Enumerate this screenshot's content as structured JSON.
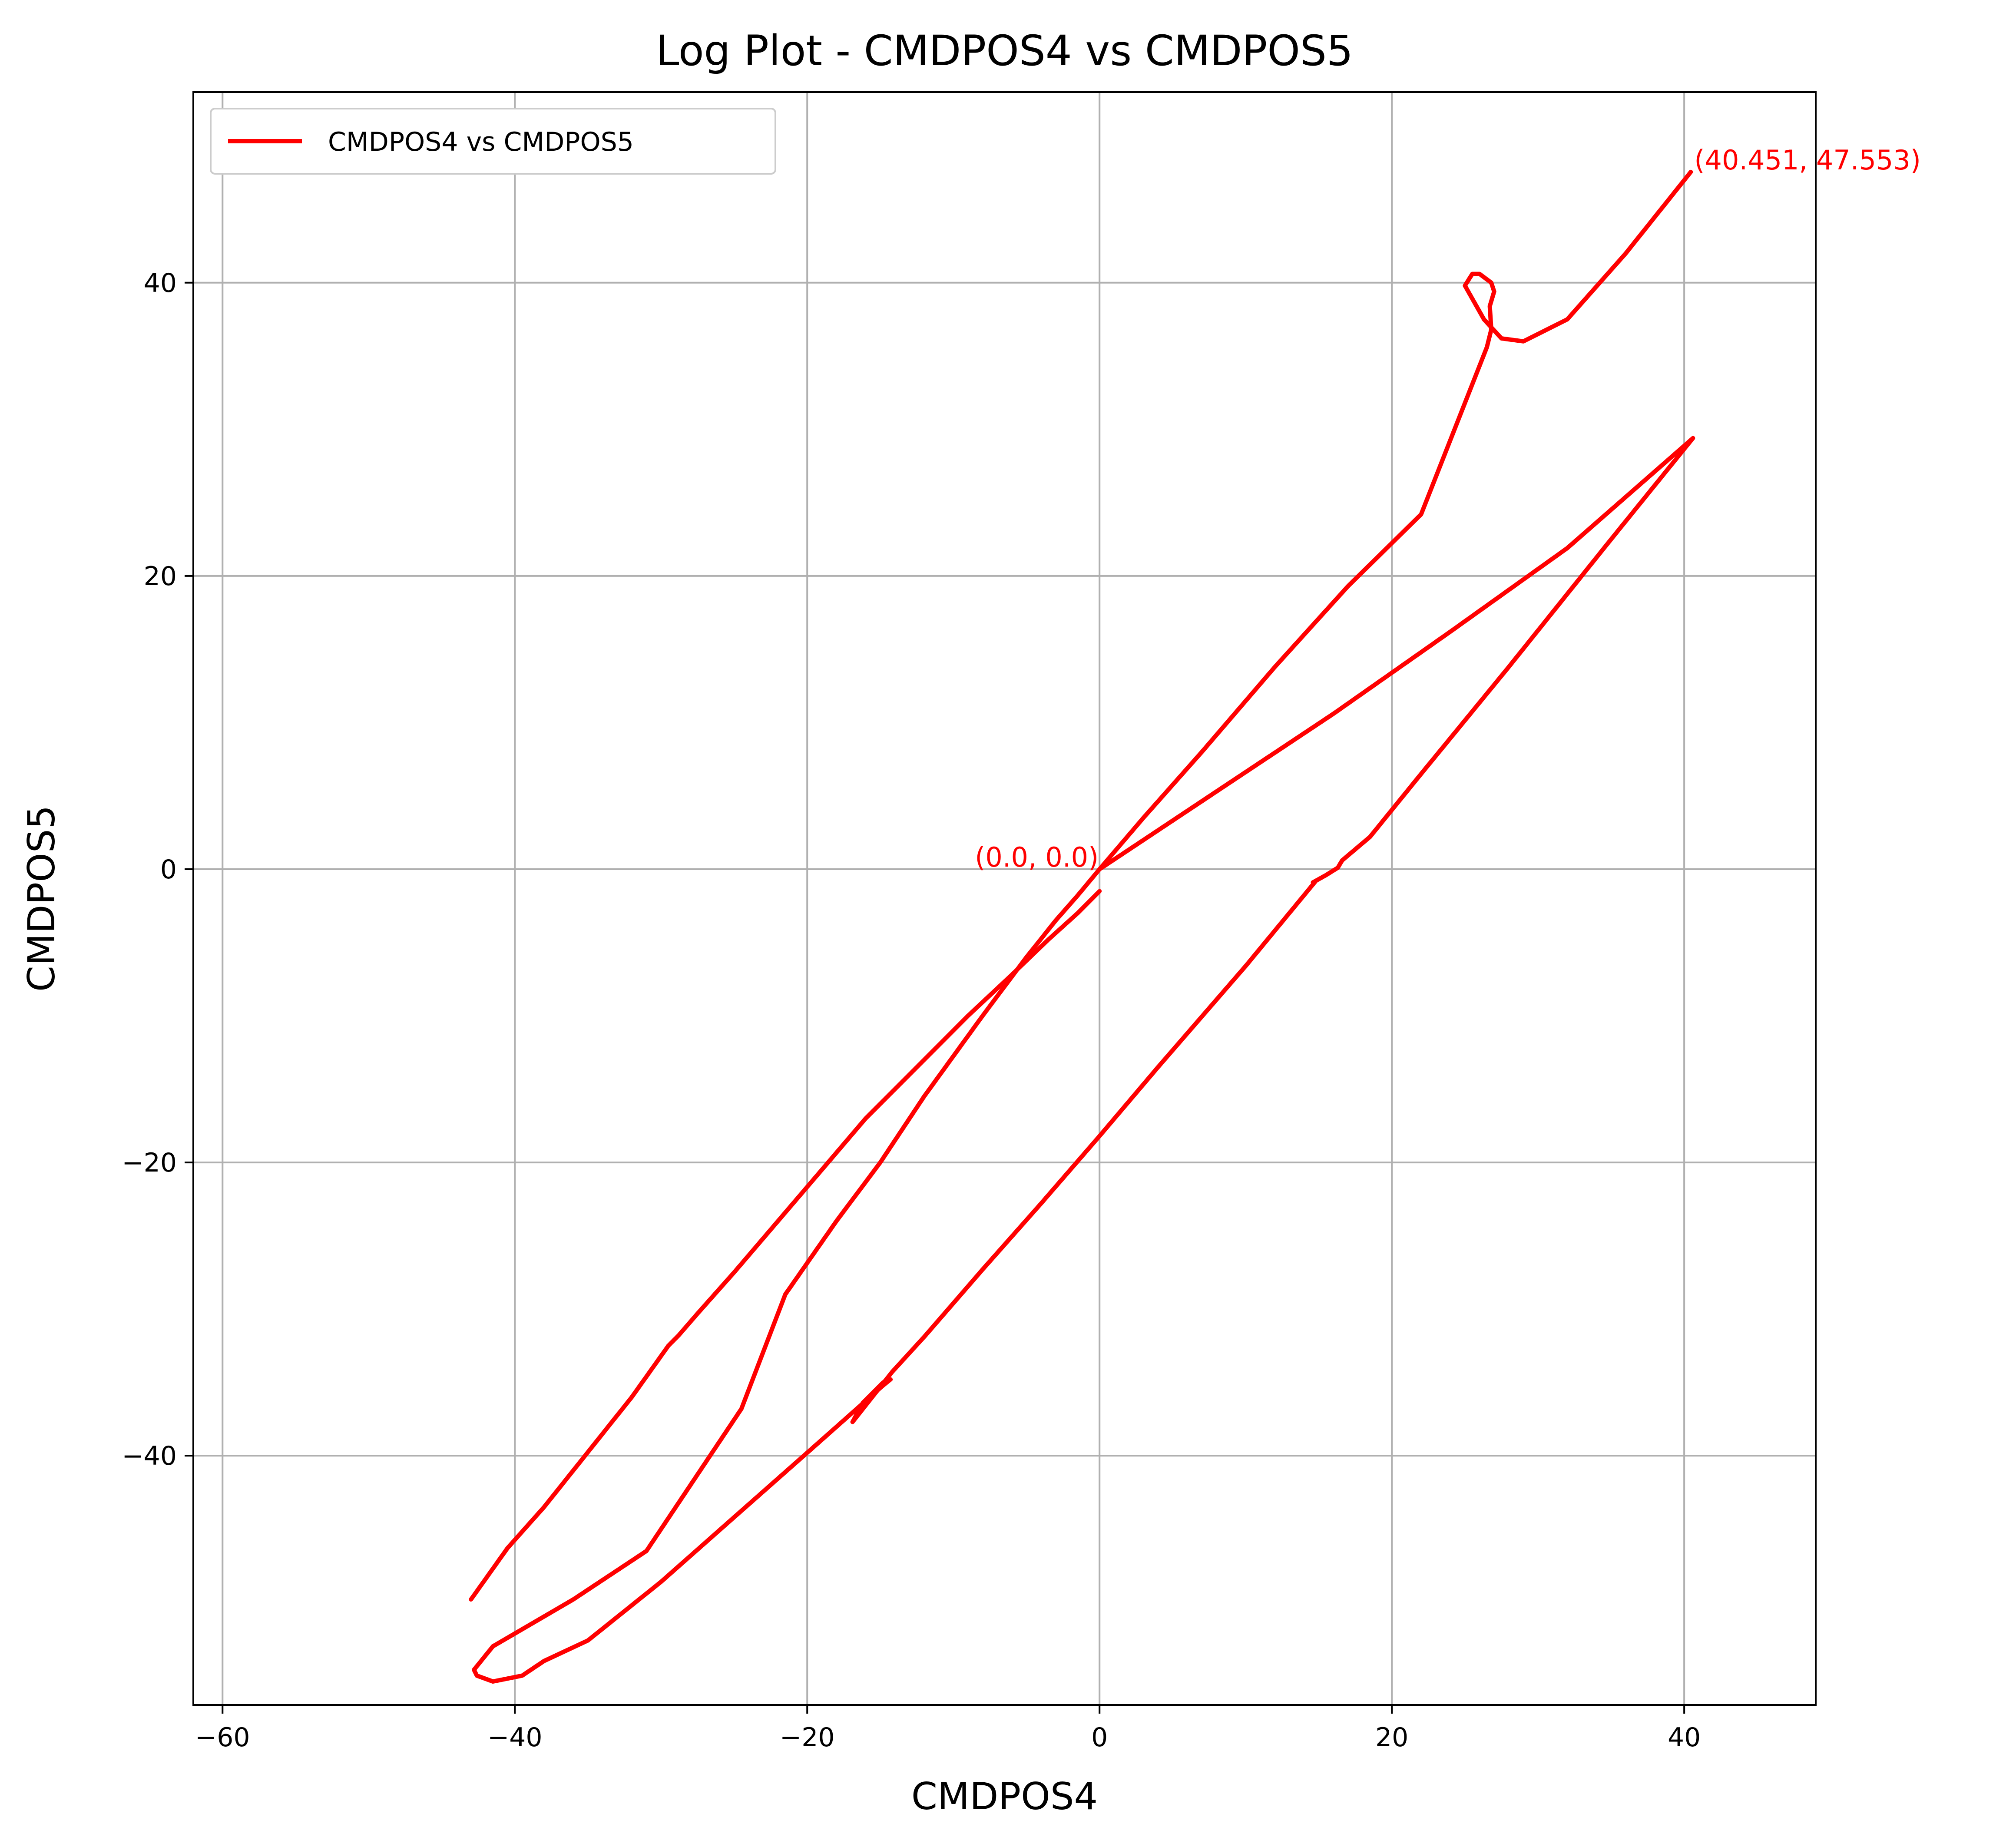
{
  "chart_data": {
    "type": "line",
    "title": "Log Plot - CMDPOS4 vs CMDPOS5",
    "xlabel": "CMDPOS4",
    "ylabel": "CMDPOS5",
    "xlim": [
      -62,
      49
    ],
    "ylim": [
      -57,
      53
    ],
    "x_ticks": [
      -60,
      -40,
      -20,
      0,
      20,
      40
    ],
    "x_tick_labels": [
      "−60",
      "−40",
      "−20",
      "0",
      "20",
      "40"
    ],
    "y_ticks": [
      -40,
      -20,
      0,
      20,
      40
    ],
    "y_tick_labels": [
      "−40",
      "−20",
      "0",
      "20",
      "40"
    ],
    "grid": true,
    "legend_position": "top-left",
    "series": [
      {
        "name": "CMDPOS4 vs CMDPOS5",
        "color": "#ff0000",
        "x": [
          0.0,
          8,
          16,
          24,
          32,
          40.6,
          35,
          28,
          22,
          18.5,
          16.6,
          16.3,
          15.5,
          14.6,
          14.8,
          10,
          4,
          0,
          -4,
          -8,
          -12,
          -14.2,
          -16.9,
          -16.2,
          -14.8,
          -14.3,
          -14.8,
          -20,
          -25,
          -30,
          -35,
          -38.0,
          -39.5,
          -41.5,
          -42.6,
          -42.8,
          -41.5,
          -36,
          -31,
          -24.5,
          -21.5,
          -18,
          -15,
          -12,
          -8,
          -5,
          -3,
          -1.5,
          0,
          3,
          7,
          12,
          17,
          22,
          26.5,
          26.8,
          26.7,
          27.0,
          26.8,
          26.0,
          25.5,
          25.0,
          26.3,
          27.5,
          29,
          32,
          36,
          40.451,
          40.451
        ],
        "y": [
          0.0,
          5.3,
          10.6,
          16.2,
          21.9,
          29.4,
          22.5,
          13.8,
          6.5,
          2.2,
          0.6,
          0.1,
          -0.4,
          -0.9,
          -0.8,
          -6.6,
          -13.5,
          -18.2,
          -22.8,
          -27.3,
          -31.9,
          -34.3,
          -37.7,
          -36.4,
          -35.0,
          -34.8,
          -35.2,
          -39.8,
          -44.2,
          -48.6,
          -52.6,
          -54.0,
          -55.0,
          -55.4,
          -55.0,
          -54.6,
          -53.0,
          -49.8,
          -46.5,
          -36.8,
          -29.0,
          -24.0,
          -20.0,
          -15.5,
          -10.0,
          -6.0,
          -3.5,
          -1.8,
          0.0,
          3.5,
          8.0,
          13.8,
          19.3,
          24.2,
          35.6,
          36.8,
          38.4,
          39.4,
          40.0,
          40.6,
          40.6,
          39.8,
          37.5,
          36.2,
          36.0,
          37.5,
          42.0,
          47.553,
          47.553
        ]
      }
    ],
    "segments_extra": [
      {
        "x": [
          -43,
          -40.5,
          -38,
          -35.2,
          -32,
          -29.5,
          -28.8,
          -27.5,
          -25,
          -22,
          -19,
          -16,
          -13,
          -9,
          -6,
          -3.5,
          -1.5,
          0
        ],
        "y": [
          -49.8,
          -46.3,
          -43.5,
          -40.0,
          -36.0,
          -32.5,
          -31.8,
          -30.3,
          -27.5,
          -24.0,
          -20.5,
          -17.0,
          -14.0,
          -10.0,
          -7.2,
          -4.8,
          -3.0,
          -1.5
        ]
      }
    ],
    "annotations": [
      {
        "text": "(40.451, 47.553)",
        "x": 40.451,
        "y": 47.553,
        "color": "#ff0000"
      },
      {
        "text": "(0.0, 0.0)",
        "x": 0.0,
        "y": 0.0,
        "color": "#ff0000"
      }
    ],
    "legend": [
      "CMDPOS4 vs CMDPOS5"
    ]
  }
}
